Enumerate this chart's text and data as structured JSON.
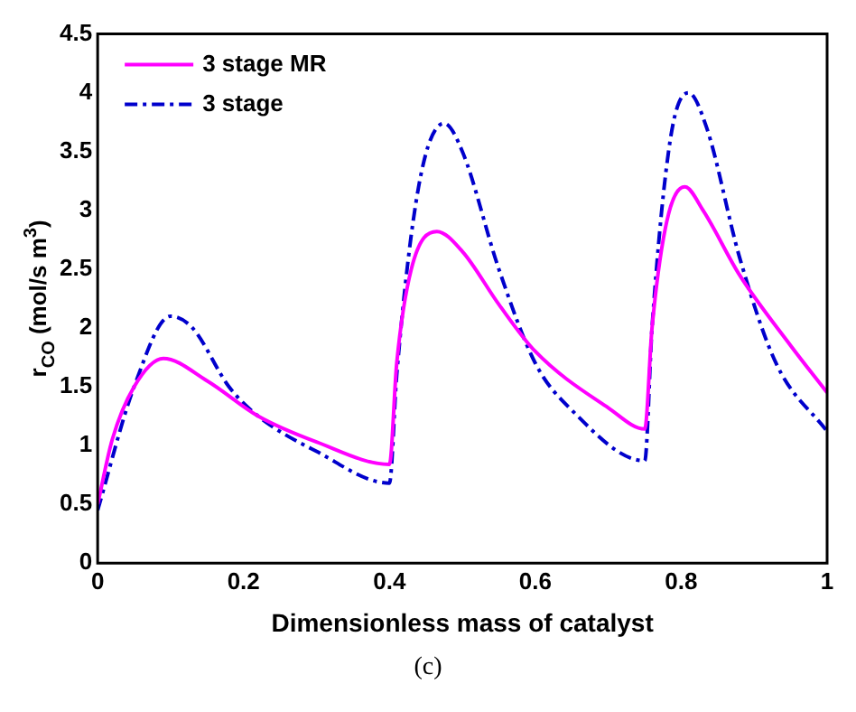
{
  "chart_data": {
    "type": "line",
    "xlabel": "Dimensionless mass of catalyst",
    "ylabel": "r$_{CO}$ (mol/s m$^{3}$)",
    "annotations": [
      "(c)"
    ],
    "xlim": [
      0,
      1
    ],
    "xticks": [
      0,
      0.2,
      0.4,
      0.6,
      0.8,
      1
    ],
    "ylim": [
      0,
      4.5
    ],
    "yticks": [
      0,
      0.5,
      1,
      1.5,
      2,
      2.5,
      3,
      3.5,
      4,
      4.5
    ],
    "grid": false,
    "legend": "top left",
    "marker": "none",
    "series": [
      {
        "name": "3 stage MR",
        "color": "#ff00ff",
        "line_style": "solid",
        "x": [
          0,
          0.02,
          0.05,
          0.09,
          0.15,
          0.22,
          0.3,
          0.4,
          0.41,
          0.43,
          0.465,
          0.5,
          0.55,
          0.6,
          0.7,
          0.75,
          0.76,
          0.78,
          0.805,
          0.83,
          0.88,
          0.95,
          1
        ],
        "values": [
          0.5,
          1.05,
          1.5,
          1.74,
          1.55,
          1.25,
          1.03,
          0.84,
          1.7,
          2.5,
          2.82,
          2.65,
          2.2,
          1.8,
          1.32,
          1.14,
          2.0,
          2.9,
          3.2,
          3.0,
          2.45,
          1.85,
          1.45
        ]
      },
      {
        "name": "3 stage",
        "color": "#0000cc",
        "line_style": "dashed",
        "x": [
          0,
          0.05,
          0.1,
          0.13,
          0.18,
          0.22,
          0.3,
          0.4,
          0.41,
          0.44,
          0.475,
          0.5,
          0.55,
          0.6,
          0.65,
          0.75,
          0.76,
          0.785,
          0.81,
          0.835,
          0.88,
          0.93,
          1
        ],
        "values": [
          0.45,
          1.5,
          2.1,
          2.0,
          1.5,
          1.25,
          0.95,
          0.68,
          1.6,
          3.2,
          3.74,
          3.5,
          2.5,
          1.7,
          1.3,
          0.87,
          2.0,
          3.6,
          4.0,
          3.7,
          2.6,
          1.7,
          1.12
        ]
      }
    ]
  }
}
